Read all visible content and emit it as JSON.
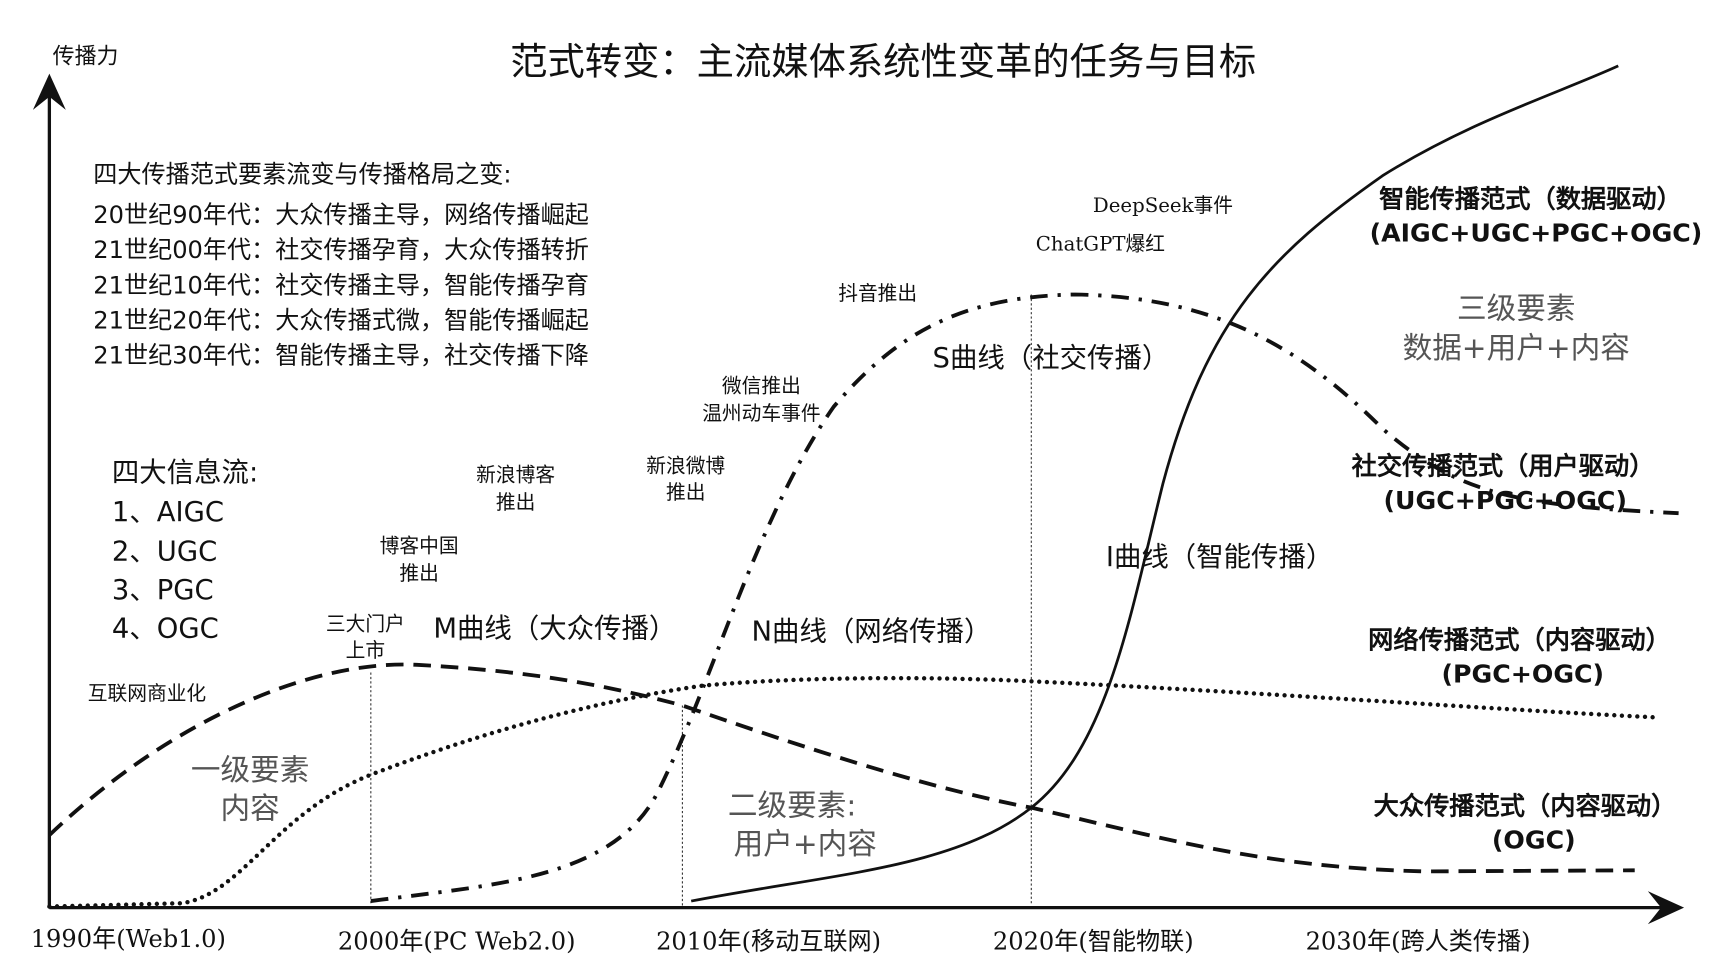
{
  "title": "范式转变：主流媒体系统性变革的任务与目标",
  "y_axis_label": "传播力",
  "x_ticks": [
    "1990年(Web1.0)",
    "2000年(PC Web2.0)",
    "2010年(移动互联网)",
    "2020年(智能物联)",
    "2030年(跨人类传播)"
  ],
  "paradigm_box": {
    "heading": "四大传播范式要素流变与传播格局之变:",
    "lines": [
      "20世纪90年代：大众传播主导，网络传播崛起",
      "21世纪00年代：社交传播孕育，大众传播转折",
      "21世纪10年代：社交传播主导，智能传播孕育",
      "21世纪20年代：大众传播式微，智能传播崛起",
      "21世纪30年代：智能传播主导，社交传播下降"
    ]
  },
  "info_flows": {
    "heading": "四大信息流:",
    "items": [
      "1、AIGC",
      "2、UGC",
      "3、PGC",
      "4、OGC"
    ]
  },
  "curves": {
    "m": "M曲线（大众传播）",
    "n": "N曲线（网络传播）",
    "s": "S曲线（社交传播）",
    "i": "I曲线（智能传播）"
  },
  "events": {
    "commercial": "互联网商业化",
    "portals": [
      "三大门户",
      "上市"
    ],
    "blogchina": [
      "博客中国",
      "推出"
    ],
    "sinablog": [
      "新浪博客",
      "推出"
    ],
    "weibo": [
      "新浪微博",
      "推出"
    ],
    "wechat": [
      "微信推出",
      "温州动车事件"
    ],
    "douyin": "抖音推出",
    "chatgpt": "ChatGPT爆红",
    "deepseek": "DeepSeek事件"
  },
  "levels": {
    "first": [
      "一级要素",
      "内容"
    ],
    "second": [
      "二级要素:",
      "用户+内容"
    ],
    "third": [
      "三级要素",
      "数据+用户+内容"
    ]
  },
  "paradigms": {
    "intelligent": [
      "智能传播范式（数据驱动）",
      "(AIGC+UGC+PGC+OGC)"
    ],
    "social": [
      "社交传播范式（用户驱动）",
      "(UGC+PGC+OGC)"
    ],
    "network": [
      "网络传播范式（内容驱动）",
      "(PGC+OGC)"
    ],
    "mass": [
      "大众传播范式（内容驱动）",
      "(OGC)"
    ]
  }
}
